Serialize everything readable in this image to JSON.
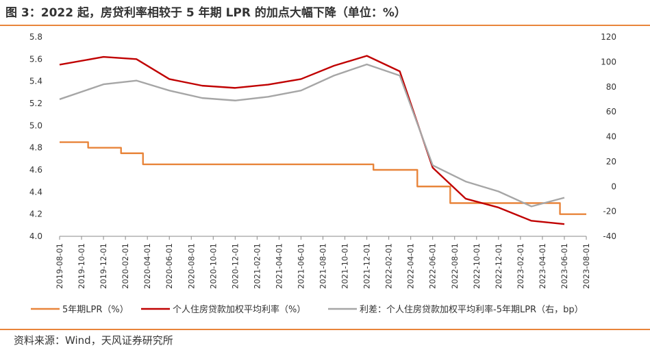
{
  "title": "图 3：2022 起，房贷利率相较于 5 年期 LPR 的加点大幅下降（单位：%）",
  "source": "资料来源：Wind，天风证券研究所",
  "colors": {
    "lpr": "#e8843a",
    "mortgage": "#c00000",
    "spread": "#a6a6a6",
    "rule": "#e8843a"
  },
  "chart_data": {
    "type": "line",
    "x": [
      "2019-08",
      "2019-09",
      "2019-10",
      "2019-11",
      "2019-12",
      "2020-01",
      "2020-02",
      "2020-03",
      "2020-04",
      "2020-05",
      "2020-06",
      "2020-07",
      "2020-08",
      "2020-09",
      "2020-10",
      "2020-11",
      "2020-12",
      "2021-01",
      "2021-02",
      "2021-03",
      "2021-04",
      "2021-05",
      "2021-06",
      "2021-07",
      "2021-08",
      "2021-09",
      "2021-10",
      "2021-11",
      "2021-12",
      "2022-01",
      "2022-02",
      "2022-03",
      "2022-04",
      "2022-05",
      "2022-06",
      "2022-07",
      "2022-08",
      "2022-09",
      "2022-10",
      "2022-11",
      "2022-12",
      "2023-01",
      "2023-02",
      "2023-03",
      "2023-04",
      "2023-05",
      "2023-06",
      "2023-07",
      "2023-08"
    ],
    "x_tick_labels": [
      "2019-08-01",
      "2019-10-01",
      "2019-12-01",
      "2020-02-01",
      "2020-04-01",
      "2020-06-01",
      "2020-08-01",
      "2020-10-01",
      "2020-12-01",
      "2021-02-01",
      "2021-04-01",
      "2021-06-01",
      "2021-08-01",
      "2021-10-01",
      "2021-12-01",
      "2022-02-01",
      "2022-04-01",
      "2022-06-01",
      "2022-08-01",
      "2022-10-01",
      "2022-12-01",
      "2023-02-01",
      "2023-04-01",
      "2023-06-01",
      "2023-08-01"
    ],
    "y_left": {
      "min": 4.0,
      "max": 5.8,
      "ticks": [
        "4.0",
        "4.2",
        "4.4",
        "4.6",
        "4.8",
        "5.0",
        "5.2",
        "5.4",
        "5.6",
        "5.8"
      ]
    },
    "y_right": {
      "min": -40,
      "max": 120,
      "ticks": [
        "-40",
        "-20",
        "0",
        "20",
        "40",
        "60",
        "80",
        "100",
        "120"
      ]
    },
    "grid": false,
    "legend_position": "bottom",
    "series": [
      {
        "name": "5年期LPR（%）",
        "axis": "left",
        "color_key": "lpr",
        "values": [
          4.85,
          4.85,
          4.85,
          4.8,
          4.8,
          4.8,
          4.75,
          4.75,
          4.65,
          4.65,
          4.65,
          4.65,
          4.65,
          4.65,
          4.65,
          4.65,
          4.65,
          4.65,
          4.65,
          4.65,
          4.65,
          4.65,
          4.65,
          4.65,
          4.65,
          4.65,
          4.65,
          4.65,
          4.65,
          4.6,
          4.6,
          4.6,
          4.6,
          4.45,
          4.45,
          4.45,
          4.3,
          4.3,
          4.3,
          4.3,
          4.3,
          4.3,
          4.3,
          4.3,
          4.3,
          4.3,
          4.2,
          4.2,
          4.2
        ]
      },
      {
        "name": "个人住房贷款加权平均利率（%）",
        "axis": "left",
        "color_key": "mortgage",
        "values": [
          5.55,
          null,
          null,
          null,
          5.62,
          null,
          null,
          5.6,
          null,
          null,
          5.42,
          null,
          null,
          5.36,
          null,
          null,
          5.34,
          null,
          null,
          5.37,
          null,
          null,
          5.42,
          null,
          null,
          5.54,
          null,
          null,
          5.63,
          null,
          null,
          5.49,
          null,
          null,
          4.62,
          null,
          null,
          4.34,
          null,
          null,
          4.26,
          null,
          null,
          4.14,
          null,
          null,
          4.11,
          null,
          null
        ]
      },
      {
        "name": "利差：个人住房贷款加权平均利率-5年期LPR（右，bp）",
        "axis": "right",
        "color_key": "spread",
        "values": [
          70,
          null,
          null,
          null,
          82,
          null,
          null,
          85,
          null,
          null,
          77,
          null,
          null,
          71,
          null,
          null,
          69,
          null,
          null,
          72,
          null,
          null,
          77,
          null,
          null,
          89,
          null,
          null,
          98,
          null,
          null,
          89,
          null,
          null,
          17,
          null,
          null,
          4,
          null,
          null,
          -4,
          null,
          null,
          -16,
          null,
          null,
          -9,
          null,
          null
        ]
      }
    ]
  }
}
